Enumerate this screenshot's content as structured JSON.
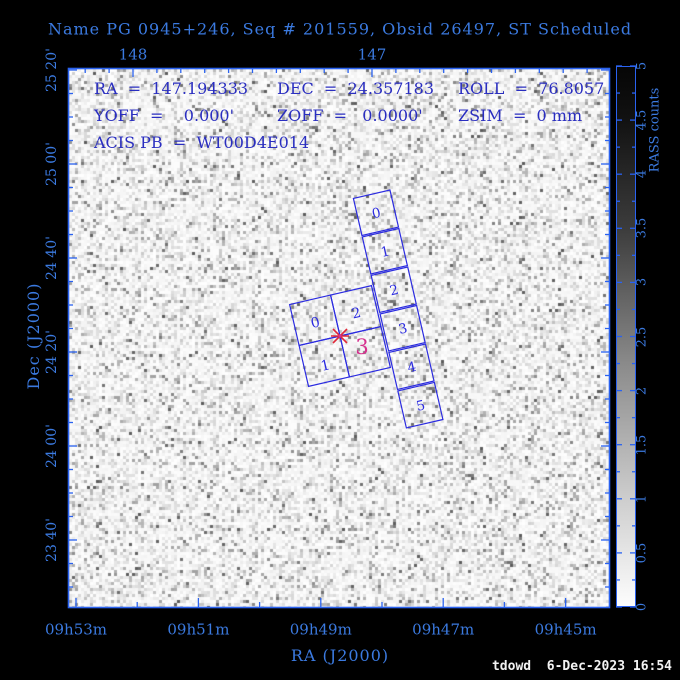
{
  "title": "Name PG 0945+246, Seq # 201559, Obsid 26497, ST Scheduled",
  "info": {
    "ra": "RA  =  147.194333",
    "dec": "DEC  =  24.357183",
    "roll": "ROLL  =  76.8057",
    "yoff": "YOFF  =    0.000'",
    "zoff": "ZOFF  =   0.0000'",
    "zsim": "ZSIM  =  0 mm",
    "acis_pb": "ACIS PB  =  WT00D4E014"
  },
  "axes": {
    "top": {
      "labels": [
        "148",
        "147"
      ]
    },
    "bottom": {
      "labels": [
        "09h53m",
        "09h51m",
        "09h49m",
        "09h47m",
        "09h45m"
      ],
      "title": "RA (J2000)"
    },
    "left": {
      "labels": [
        "25 20'",
        "25 00'",
        "24 40'",
        "24 20'",
        "24 00'",
        "23 40'"
      ],
      "title": "Dec (J2000)"
    }
  },
  "colorbar": {
    "title": "RASS counts",
    "tick_labels": [
      "0",
      "0.5",
      "1",
      "1.5",
      "2",
      "2.5",
      "3",
      "3.5",
      "4",
      "4.5",
      "5"
    ]
  },
  "chips": {
    "acis_i": [
      "0",
      "2",
      "1"
    ],
    "acis_i_aimpoint": "3",
    "acis_s": [
      "0",
      "1",
      "2",
      "3",
      "4",
      "5"
    ]
  },
  "footer": "tdowd  6-Dec-2023 16:54",
  "colors": {
    "background": "#000000",
    "axis_blue": "#3b7ae0",
    "frame_blue": "#2a62f0",
    "info_navy": "#2a2ec0",
    "chip_blue": "#2b2be0",
    "marker_red": "#e02838",
    "aimpoint_pink": "#d6308e",
    "footer_white": "#f2f2f2",
    "sky_base": "#f4f4f4"
  },
  "chart_data": {
    "type": "heatmap",
    "title": "Name PG 0945+246, Seq # 201559, Obsid 26497, ST Scheduled",
    "xlabel": "RA (J2000)",
    "ylabel": "Dec (J2000)",
    "x_tick_labels_time": [
      "09h53m",
      "09h51m",
      "09h49m",
      "09h47m",
      "09h45m"
    ],
    "x_tick_labels_degrees": [
      "148",
      "147"
    ],
    "y_tick_labels": [
      "25 20'",
      "25 00'",
      "24 40'",
      "24 20'",
      "24 00'",
      "23 40'"
    ],
    "colorbar": {
      "label": "RASS counts",
      "min": 0,
      "max": 5,
      "label_step": 0.5
    },
    "overlays": {
      "aimpoint": {
        "ra_deg": 147.194333,
        "dec_deg": 24.357183,
        "roll_deg": 76.8057,
        "marker": "asterisk",
        "chip": "3"
      },
      "acis_i_chip_labels": [
        "0",
        "2",
        "1",
        "3"
      ],
      "acis_s_chip_labels": [
        "0",
        "1",
        "2",
        "3",
        "4",
        "5"
      ],
      "offsets": {
        "yoff_arcmin": 0.0,
        "zoff_arcmin": 0.0,
        "zsim_mm": 0
      }
    },
    "legend": "none",
    "grid": false
  }
}
